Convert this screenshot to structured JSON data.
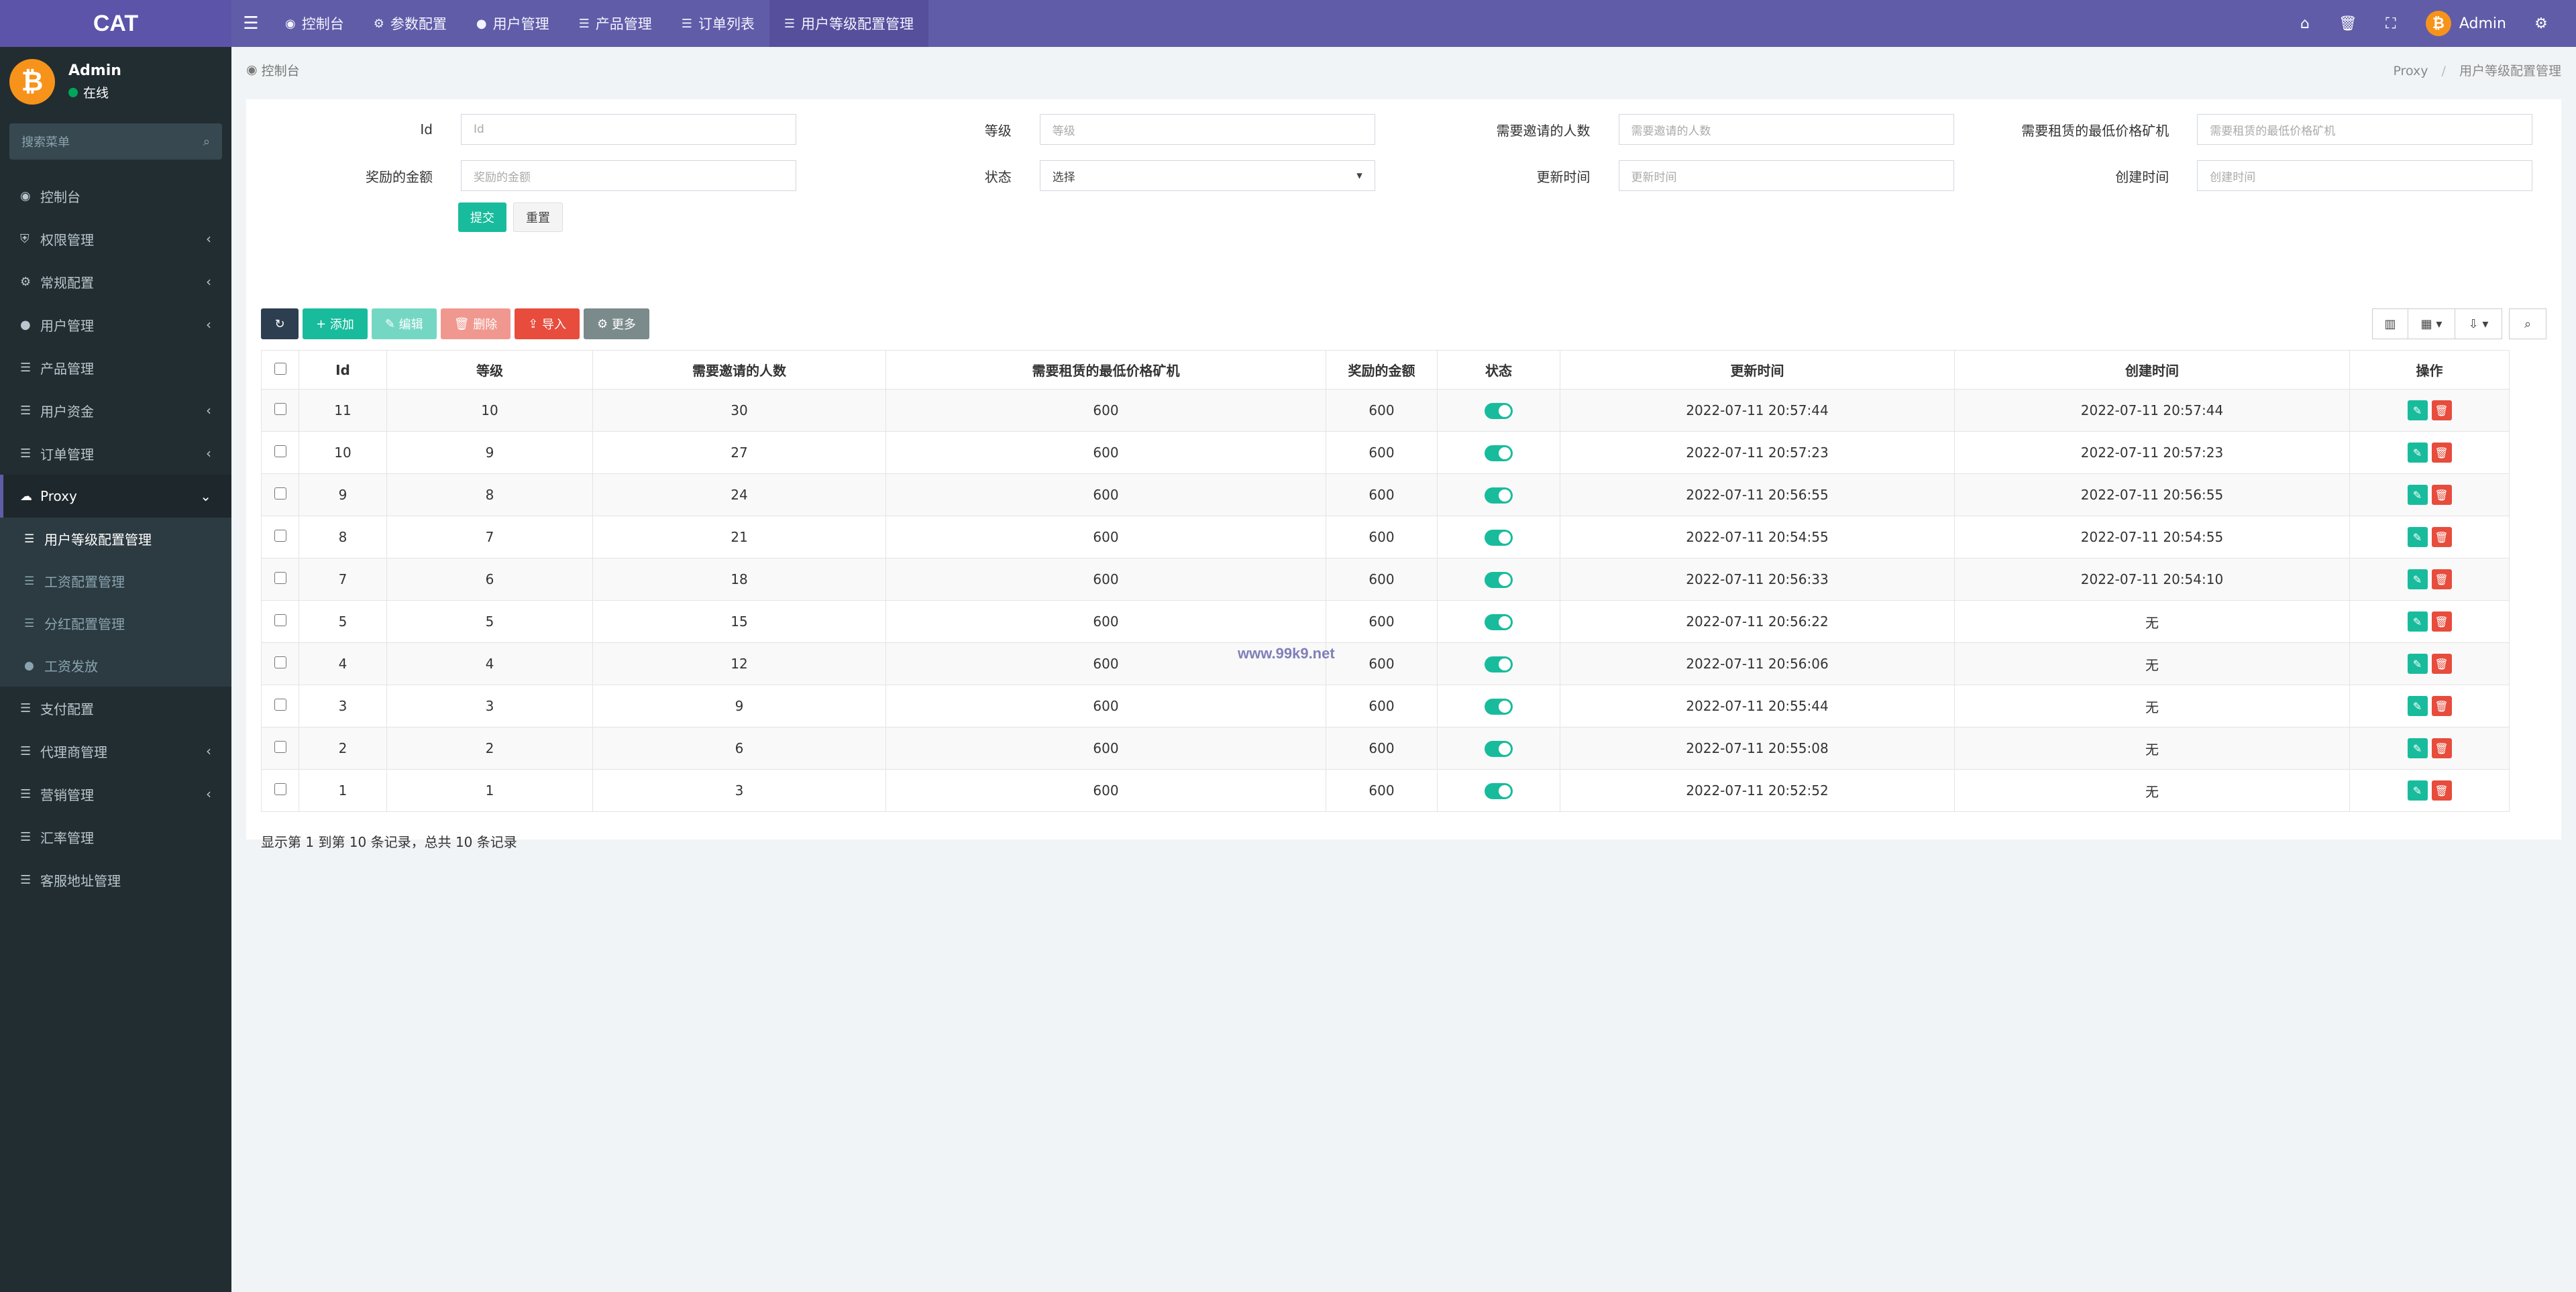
{
  "brand": "CAT",
  "topnav": [
    {
      "icon": "dashboard-icon",
      "glyph": "◉",
      "label": "控制台"
    },
    {
      "icon": "gear-icon",
      "glyph": "⚙",
      "label": "参数配置"
    },
    {
      "icon": "user-icon",
      "glyph": "●",
      "label": "用户管理"
    },
    {
      "icon": "list-icon",
      "glyph": "☰",
      "label": "产品管理"
    },
    {
      "icon": "list-icon",
      "glyph": "☰",
      "label": "订单列表"
    },
    {
      "icon": "list-icon",
      "glyph": "☰",
      "label": "用户等级配置管理"
    }
  ],
  "topright": {
    "user": "Admin"
  },
  "sidebar": {
    "user_name": "Admin",
    "user_status": "在线",
    "search_placeholder": "搜索菜单",
    "items": [
      {
        "label": "控制台",
        "glyph": "◉",
        "arrow": ""
      },
      {
        "label": "权限管理",
        "glyph": "⛨",
        "arrow": "‹"
      },
      {
        "label": "常规配置",
        "glyph": "⚙",
        "arrow": "‹"
      },
      {
        "label": "用户管理",
        "glyph": "●",
        "arrow": "‹"
      },
      {
        "label": "产品管理",
        "glyph": "☰",
        "arrow": ""
      },
      {
        "label": "用户资金",
        "glyph": "☰",
        "arrow": "‹"
      },
      {
        "label": "订单管理",
        "glyph": "☰",
        "arrow": "‹"
      },
      {
        "label": "Proxy",
        "glyph": "☁",
        "arrow": "⌄"
      }
    ],
    "sub_items": [
      {
        "label": "用户等级配置管理",
        "glyph": "☰"
      },
      {
        "label": "工资配置管理",
        "glyph": "☰"
      },
      {
        "label": "分红配置管理",
        "glyph": "☰"
      },
      {
        "label": "工资发放",
        "glyph": "●"
      }
    ],
    "items_after": [
      {
        "label": "支付配置",
        "glyph": "☰",
        "arrow": ""
      },
      {
        "label": "代理商管理",
        "glyph": "☰",
        "arrow": "‹"
      },
      {
        "label": "营销管理",
        "glyph": "☰",
        "arrow": "‹"
      },
      {
        "label": "汇率管理",
        "glyph": "☰",
        "arrow": ""
      },
      {
        "label": "客服地址管理",
        "glyph": "☰",
        "arrow": ""
      }
    ]
  },
  "breadcrumb": {
    "home": "控制台",
    "parent": "Proxy",
    "current": "用户等级配置管理"
  },
  "form": {
    "fields": [
      {
        "label": "Id",
        "placeholder": "Id"
      },
      {
        "label": "等级",
        "placeholder": "等级"
      },
      {
        "label": "需要邀请的人数",
        "placeholder": "需要邀请的人数"
      },
      {
        "label": "需要租赁的最低价格矿机",
        "placeholder": "需要租赁的最低价格矿机"
      },
      {
        "label": "奖励的金额",
        "placeholder": "奖励的金额"
      },
      {
        "label": "状态",
        "placeholder": "选择"
      },
      {
        "label": "更新时间",
        "placeholder": "更新时间"
      },
      {
        "label": "创建时间",
        "placeholder": "创建时间"
      }
    ],
    "submit": "提交",
    "reset": "重置"
  },
  "toolbar": {
    "add": "添加",
    "edit": "编辑",
    "delete": "删除",
    "import": "导入",
    "more": "更多"
  },
  "table": {
    "headers": [
      "Id",
      "等级",
      "需要邀请的人数",
      "需要租赁的最低价格矿机",
      "奖励的金额",
      "状态",
      "更新时间",
      "创建时间",
      "操作"
    ],
    "rows": [
      [
        "11",
        "10",
        "30",
        "600",
        "600",
        "2022-07-11 20:57:44",
        "2022-07-11 20:57:44"
      ],
      [
        "10",
        "9",
        "27",
        "600",
        "600",
        "2022-07-11 20:57:23",
        "2022-07-11 20:57:23"
      ],
      [
        "9",
        "8",
        "24",
        "600",
        "600",
        "2022-07-11 20:56:55",
        "2022-07-11 20:56:55"
      ],
      [
        "8",
        "7",
        "21",
        "600",
        "600",
        "2022-07-11 20:54:55",
        "2022-07-11 20:54:55"
      ],
      [
        "7",
        "6",
        "18",
        "600",
        "600",
        "2022-07-11 20:56:33",
        "2022-07-11 20:54:10"
      ],
      [
        "5",
        "5",
        "15",
        "600",
        "600",
        "2022-07-11 20:56:22",
        "无"
      ],
      [
        "4",
        "4",
        "12",
        "600",
        "600",
        "2022-07-11 20:56:06",
        "无"
      ],
      [
        "3",
        "3",
        "9",
        "600",
        "600",
        "2022-07-11 20:55:44",
        "无"
      ],
      [
        "2",
        "2",
        "6",
        "600",
        "600",
        "2022-07-11 20:55:08",
        "无"
      ],
      [
        "1",
        "1",
        "3",
        "600",
        "600",
        "2022-07-11 20:52:52",
        "无"
      ]
    ]
  },
  "pagination_info": "显示第 1 到第 10 条记录，总共 10 条记录",
  "watermark": "www.99k9.net"
}
